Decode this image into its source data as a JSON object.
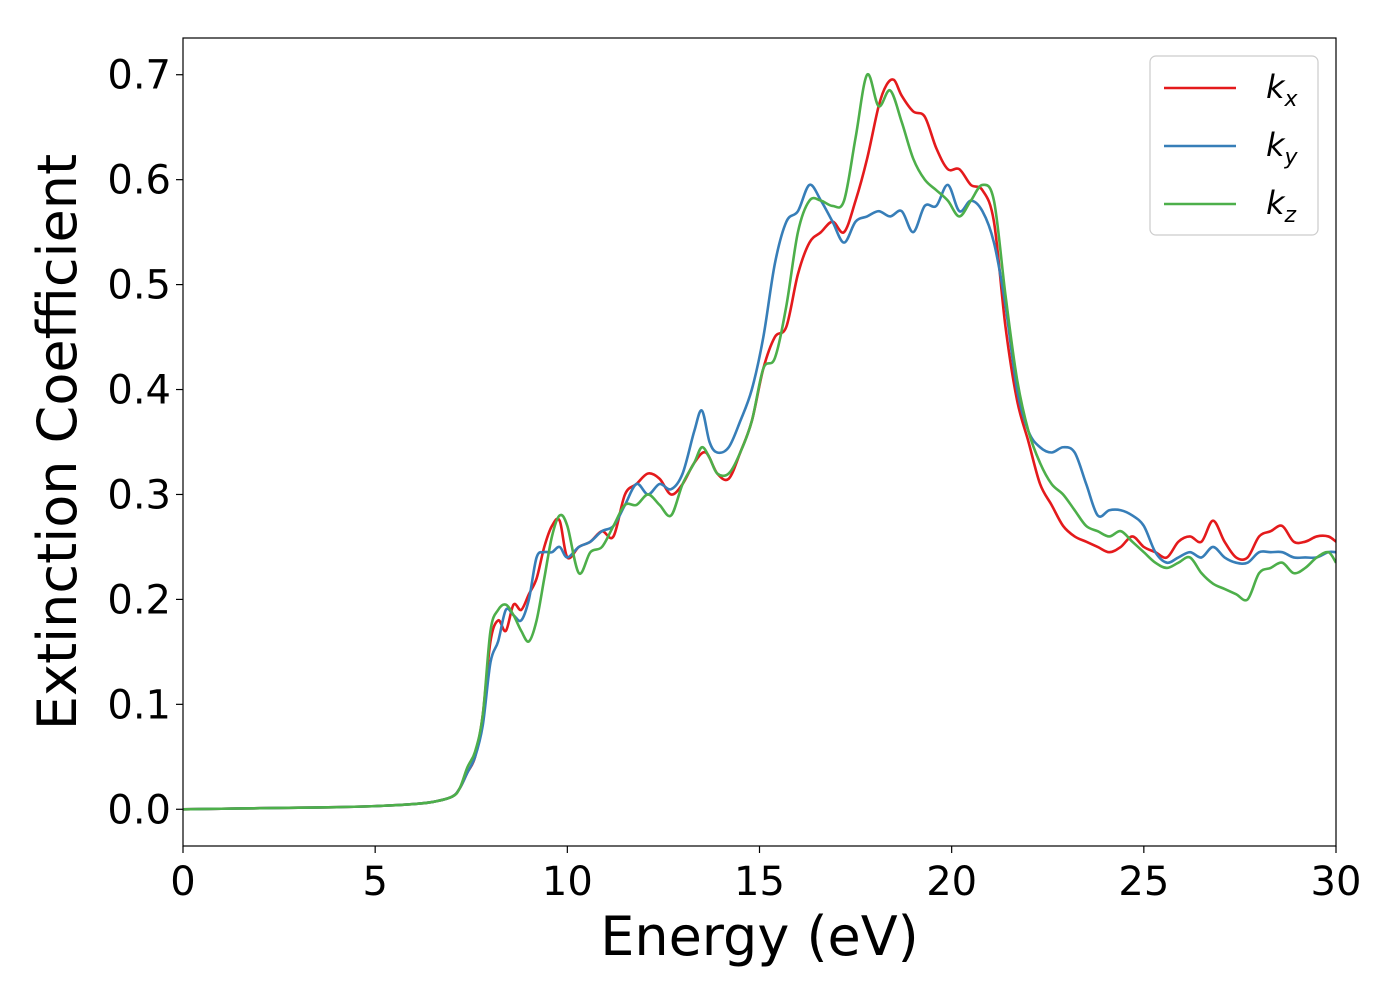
{
  "chart_data": {
    "type": "line",
    "xlabel": "Energy (eV)",
    "ylabel": "Extinction Coefficient",
    "xlim": [
      0,
      30
    ],
    "ylim": [
      -0.035,
      0.735
    ],
    "xticks": [
      0,
      5,
      10,
      15,
      20,
      25,
      30
    ],
    "xtick_labels": [
      "0",
      "5",
      "10",
      "15",
      "20",
      "25",
      "30"
    ],
    "yticks": [
      0.0,
      0.1,
      0.2,
      0.3,
      0.4,
      0.5,
      0.6,
      0.7
    ],
    "ytick_labels": [
      "0.0",
      "0.1",
      "0.2",
      "0.3",
      "0.4",
      "0.5",
      "0.6",
      "0.7"
    ],
    "grid": false,
    "legend_position": "top-right",
    "series": [
      {
        "name": "k_x",
        "label_base": "k",
        "label_sub": "x",
        "color": "#e41a1c",
        "x": [
          0,
          1,
          2,
          3,
          4,
          5,
          6,
          6.5,
          7,
          7.2,
          7.4,
          7.6,
          7.8,
          8.0,
          8.2,
          8.4,
          8.6,
          8.8,
          9.0,
          9.2,
          9.4,
          9.6,
          9.8,
          10.0,
          10.3,
          10.6,
          10.9,
          11.2,
          11.5,
          11.8,
          12.1,
          12.4,
          12.7,
          13.0,
          13.3,
          13.6,
          13.9,
          14.2,
          14.5,
          14.8,
          15.1,
          15.4,
          15.7,
          16.0,
          16.3,
          16.6,
          16.9,
          17.2,
          17.5,
          17.8,
          18.1,
          18.3,
          18.5,
          18.7,
          19.0,
          19.3,
          19.6,
          19.9,
          20.2,
          20.5,
          20.8,
          21.1,
          21.4,
          21.7,
          22.0,
          22.3,
          22.6,
          22.9,
          23.2,
          23.5,
          23.8,
          24.1,
          24.4,
          24.7,
          25.0,
          25.3,
          25.6,
          25.9,
          26.2,
          26.5,
          26.8,
          27.1,
          27.4,
          27.7,
          28.0,
          28.3,
          28.6,
          28.9,
          29.2,
          29.5,
          29.8,
          30.0
        ],
        "y": [
          0,
          0.0005,
          0.001,
          0.0015,
          0.002,
          0.003,
          0.005,
          0.007,
          0.012,
          0.02,
          0.035,
          0.05,
          0.09,
          0.16,
          0.18,
          0.17,
          0.195,
          0.19,
          0.205,
          0.22,
          0.25,
          0.27,
          0.275,
          0.24,
          0.25,
          0.255,
          0.265,
          0.26,
          0.3,
          0.31,
          0.32,
          0.315,
          0.3,
          0.31,
          0.33,
          0.34,
          0.32,
          0.315,
          0.34,
          0.37,
          0.42,
          0.45,
          0.46,
          0.51,
          0.54,
          0.55,
          0.56,
          0.55,
          0.58,
          0.62,
          0.67,
          0.69,
          0.695,
          0.68,
          0.665,
          0.66,
          0.63,
          0.61,
          0.61,
          0.595,
          0.59,
          0.56,
          0.46,
          0.39,
          0.35,
          0.31,
          0.29,
          0.27,
          0.26,
          0.255,
          0.25,
          0.245,
          0.25,
          0.26,
          0.25,
          0.245,
          0.24,
          0.255,
          0.26,
          0.255,
          0.275,
          0.255,
          0.24,
          0.24,
          0.26,
          0.265,
          0.27,
          0.255,
          0.255,
          0.26,
          0.26,
          0.255
        ]
      },
      {
        "name": "k_y",
        "label_base": "k",
        "label_sub": "y",
        "color": "#377eb8",
        "x": [
          0,
          1,
          2,
          3,
          4,
          5,
          6,
          6.5,
          7,
          7.2,
          7.4,
          7.6,
          7.8,
          8.0,
          8.2,
          8.4,
          8.6,
          8.8,
          9.0,
          9.2,
          9.4,
          9.6,
          9.8,
          10.0,
          10.3,
          10.6,
          10.9,
          11.2,
          11.5,
          11.8,
          12.1,
          12.4,
          12.7,
          13.0,
          13.3,
          13.5,
          13.7,
          13.9,
          14.2,
          14.5,
          14.8,
          15.1,
          15.4,
          15.7,
          16.0,
          16.3,
          16.6,
          16.9,
          17.2,
          17.5,
          17.8,
          18.1,
          18.4,
          18.7,
          19.0,
          19.3,
          19.6,
          19.9,
          20.2,
          20.5,
          20.8,
          21.1,
          21.4,
          21.7,
          22.0,
          22.3,
          22.6,
          22.9,
          23.2,
          23.5,
          23.8,
          24.1,
          24.4,
          24.7,
          25.0,
          25.3,
          25.6,
          25.9,
          26.2,
          26.5,
          26.8,
          27.1,
          27.4,
          27.7,
          28.0,
          28.3,
          28.6,
          28.9,
          29.2,
          29.5,
          29.8,
          30.0
        ],
        "y": [
          0,
          0.0005,
          0.001,
          0.0015,
          0.002,
          0.003,
          0.005,
          0.007,
          0.012,
          0.02,
          0.035,
          0.05,
          0.08,
          0.14,
          0.16,
          0.19,
          0.185,
          0.18,
          0.2,
          0.24,
          0.245,
          0.245,
          0.25,
          0.24,
          0.25,
          0.255,
          0.265,
          0.27,
          0.29,
          0.31,
          0.3,
          0.31,
          0.305,
          0.32,
          0.36,
          0.38,
          0.35,
          0.34,
          0.345,
          0.37,
          0.4,
          0.45,
          0.52,
          0.56,
          0.57,
          0.595,
          0.58,
          0.56,
          0.54,
          0.56,
          0.565,
          0.57,
          0.565,
          0.57,
          0.55,
          0.575,
          0.575,
          0.595,
          0.57,
          0.58,
          0.57,
          0.54,
          0.48,
          0.4,
          0.36,
          0.345,
          0.34,
          0.345,
          0.34,
          0.31,
          0.28,
          0.285,
          0.285,
          0.28,
          0.27,
          0.245,
          0.235,
          0.24,
          0.245,
          0.24,
          0.25,
          0.24,
          0.235,
          0.235,
          0.245,
          0.245,
          0.245,
          0.24,
          0.24,
          0.24,
          0.245,
          0.245
        ]
      },
      {
        "name": "k_z",
        "label_base": "k",
        "label_sub": "z",
        "color": "#4daf4a",
        "x": [
          0,
          1,
          2,
          3,
          4,
          5,
          6,
          6.5,
          7,
          7.2,
          7.4,
          7.6,
          7.8,
          8.0,
          8.2,
          8.4,
          8.6,
          8.8,
          9.0,
          9.2,
          9.4,
          9.6,
          9.8,
          10.0,
          10.3,
          10.6,
          10.9,
          11.2,
          11.5,
          11.8,
          12.1,
          12.4,
          12.7,
          13.0,
          13.3,
          13.5,
          13.7,
          13.9,
          14.2,
          14.5,
          14.8,
          15.1,
          15.4,
          15.7,
          16.0,
          16.3,
          16.6,
          16.9,
          17.2,
          17.5,
          17.8,
          18.1,
          18.4,
          18.7,
          19.0,
          19.3,
          19.6,
          19.9,
          20.2,
          20.5,
          20.8,
          21.1,
          21.4,
          21.7,
          22.0,
          22.3,
          22.6,
          22.9,
          23.2,
          23.5,
          23.8,
          24.1,
          24.4,
          24.7,
          25.0,
          25.3,
          25.6,
          25.9,
          26.2,
          26.5,
          26.8,
          27.1,
          27.4,
          27.7,
          28.0,
          28.3,
          28.6,
          28.9,
          29.2,
          29.5,
          29.8,
          30.0
        ],
        "y": [
          0,
          0.0005,
          0.001,
          0.0015,
          0.002,
          0.003,
          0.005,
          0.007,
          0.012,
          0.02,
          0.04,
          0.055,
          0.09,
          0.17,
          0.19,
          0.195,
          0.185,
          0.17,
          0.16,
          0.18,
          0.22,
          0.26,
          0.28,
          0.27,
          0.225,
          0.245,
          0.25,
          0.27,
          0.29,
          0.29,
          0.3,
          0.29,
          0.28,
          0.31,
          0.33,
          0.345,
          0.335,
          0.32,
          0.32,
          0.34,
          0.37,
          0.42,
          0.43,
          0.48,
          0.55,
          0.58,
          0.58,
          0.575,
          0.58,
          0.64,
          0.7,
          0.67,
          0.685,
          0.655,
          0.62,
          0.6,
          0.59,
          0.58,
          0.565,
          0.58,
          0.595,
          0.58,
          0.49,
          0.41,
          0.36,
          0.33,
          0.31,
          0.3,
          0.285,
          0.27,
          0.265,
          0.26,
          0.265,
          0.255,
          0.245,
          0.235,
          0.23,
          0.235,
          0.24,
          0.225,
          0.215,
          0.21,
          0.205,
          0.2,
          0.225,
          0.23,
          0.235,
          0.225,
          0.23,
          0.24,
          0.245,
          0.235
        ]
      }
    ]
  }
}
